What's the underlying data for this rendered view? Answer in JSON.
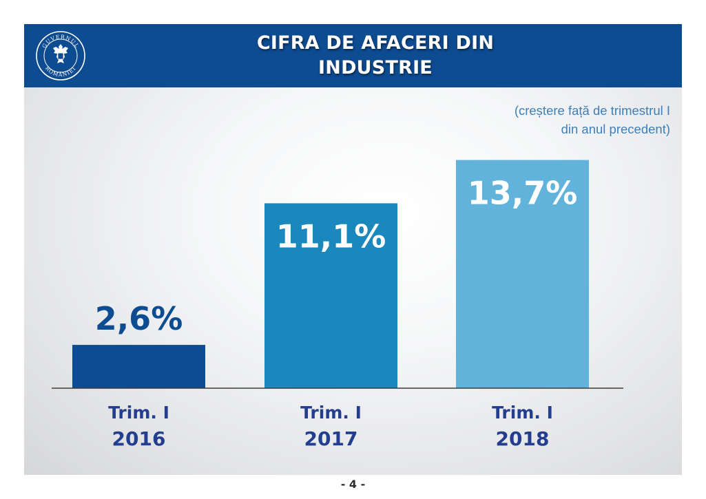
{
  "header": {
    "title_line1": "CIFRA DE AFACERI DIN",
    "title_line2": "INDUSTRIE",
    "logo_text": "GUVERNUL ROMÂNIEI"
  },
  "note": {
    "line1": "(creștere față de trimestrul I",
    "line2": "din anul precedent)"
  },
  "page_number": "- 4 -",
  "colors": {
    "header_bg": "#0e4c92",
    "bar_2016": "#0e4c92",
    "bar_2017": "#1a88bd",
    "bar_2018": "#61b3dc",
    "axis_label": "#233e8f"
  },
  "chart_data": {
    "type": "bar",
    "categories": [
      "Trim. I 2016",
      "Trim. I 2017",
      "Trim. I 2018"
    ],
    "category_lines": [
      [
        "Trim. I",
        "2016"
      ],
      [
        "Trim. I",
        "2017"
      ],
      [
        "Trim. I",
        "2018"
      ]
    ],
    "values": [
      2.6,
      11.1,
      13.7
    ],
    "data_labels": [
      "2,6%",
      "11,1%",
      "13,7%"
    ],
    "unit": "%",
    "title": "CIFRA DE AFACERI DIN INDUSTRIE",
    "xlabel": "",
    "ylabel": "",
    "ylim": [
      0,
      13.7
    ],
    "grid": false,
    "legend": "none"
  }
}
